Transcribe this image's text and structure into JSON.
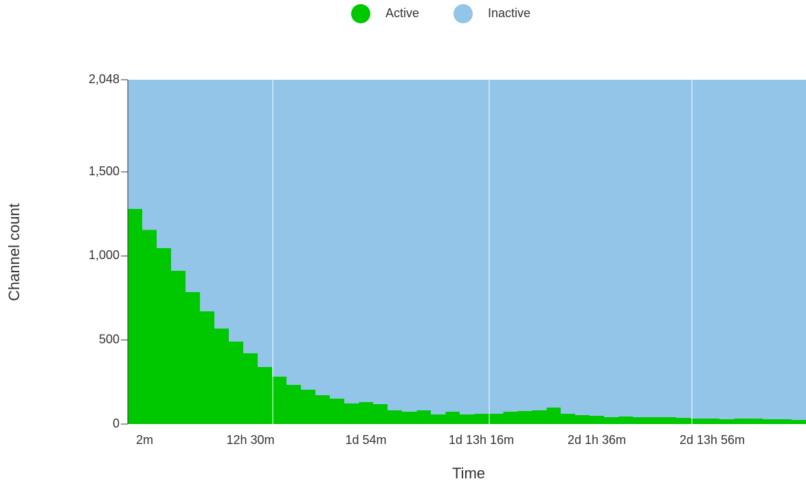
{
  "chart_data": {
    "type": "bar",
    "stacked": true,
    "x_label": "Time",
    "y_label": "Channel count",
    "categories": [
      "2m",
      null,
      null,
      null,
      null,
      null,
      null,
      null,
      "12h 30m",
      null,
      null,
      null,
      null,
      null,
      null,
      null,
      "1d  54m",
      null,
      null,
      null,
      null,
      null,
      null,
      null,
      "1d 13h 16m",
      null,
      null,
      null,
      null,
      null,
      null,
      null,
      "2d 1h 36m",
      null,
      null,
      null,
      null,
      null,
      null,
      null,
      "2d 13h 56m",
      null,
      null,
      null,
      null,
      null,
      null
    ],
    "series": [
      {
        "name": "Active",
        "color": "#00c800",
        "values": [
          1280,
          1155,
          1047,
          912,
          785,
          670,
          568,
          490,
          421,
          339,
          282,
          233,
          204,
          172,
          151,
          123,
          131,
          119,
          82,
          74,
          82,
          57,
          74,
          57,
          61,
          61,
          74,
          78,
          82,
          98,
          61,
          53,
          49,
          41,
          45,
          41,
          41,
          41,
          37,
          33,
          33,
          29,
          33,
          33,
          29,
          29,
          25
        ]
      },
      {
        "name": "Inactive",
        "color": "#92c5e8",
        "values": [
          768,
          893,
          1001,
          1136,
          1263,
          1378,
          1480,
          1558,
          1627,
          1709,
          1766,
          1815,
          1844,
          1876,
          1897,
          1925,
          1917,
          1929,
          1966,
          1974,
          1966,
          1991,
          1974,
          1991,
          1987,
          1987,
          1974,
          1970,
          1966,
          1950,
          1987,
          1995,
          1999,
          2007,
          2003,
          2007,
          2007,
          2007,
          2011,
          2015,
          2015,
          2019,
          2015,
          2015,
          2019,
          2019,
          2023
        ]
      }
    ],
    "ylim": [
      0,
      2048
    ],
    "yticks": [
      0,
      500,
      {
        "value": 1000,
        "label": "1,000"
      },
      {
        "value": 1500,
        "label": "1,500"
      },
      {
        "value": 2048,
        "label": "2,048"
      }
    ],
    "legend": "top"
  }
}
